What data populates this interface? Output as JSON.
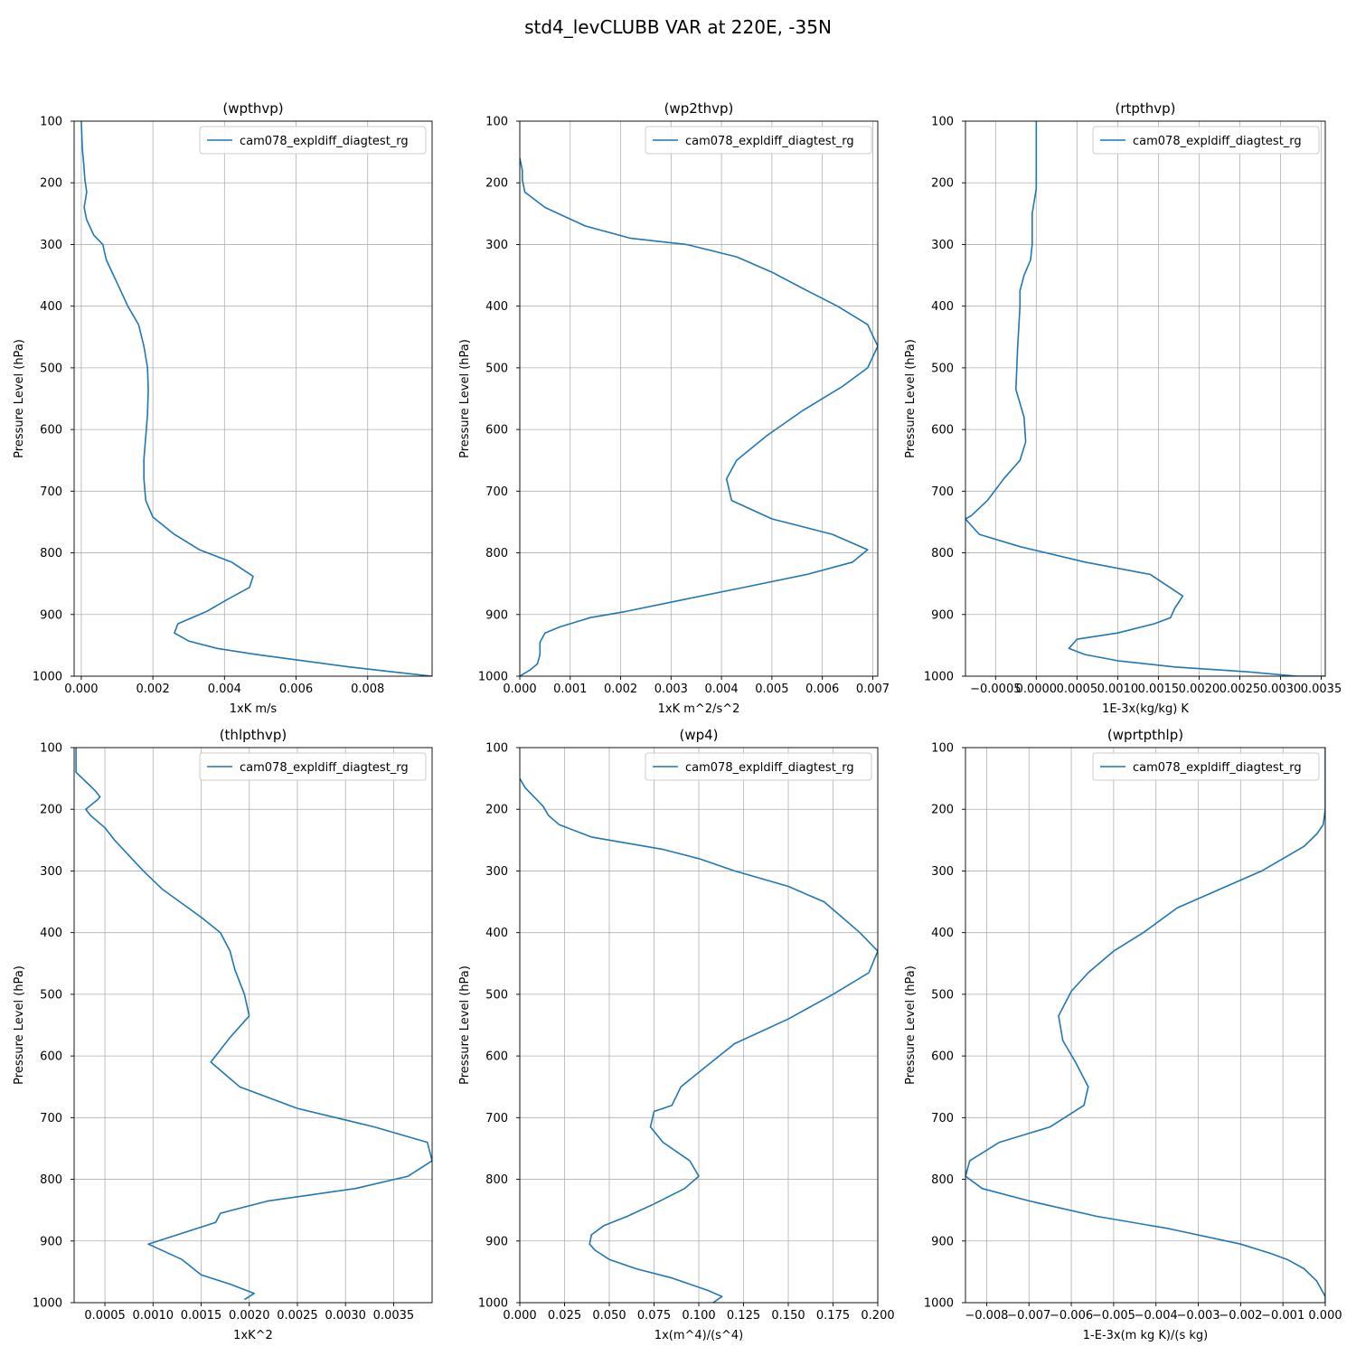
{
  "figure": {
    "title": "std4_levCLUBB VAR at 220E, -35N",
    "colors": {
      "line": "#1f77b4",
      "grid": "#b0b0b0",
      "axes": "#000000",
      "legend_border": "#cccccc"
    }
  },
  "chart_data": [
    {
      "type": "line",
      "title": "(wpthvp)",
      "xlabel": "1xK m/s",
      "ylabel": "Pressure Level (hPa)",
      "xlim": [
        -0.0002,
        0.0098
      ],
      "ylim": [
        1000,
        100
      ],
      "y_inverted": true,
      "xticks": [
        0.0,
        0.002,
        0.004,
        0.006,
        0.008
      ],
      "xtick_labels": [
        "0.000",
        "0.002",
        "0.004",
        "0.006",
        "0.008"
      ],
      "yticks": [
        100,
        200,
        300,
        400,
        500,
        600,
        700,
        800,
        900,
        1000
      ],
      "grid": true,
      "legend": "upper right",
      "series": [
        {
          "name": "cam078_expldiff_diagtest_rg",
          "x": [
            0.0,
            3e-05,
            7e-05,
            0.0001,
            0.00015,
            8e-05,
            0.00015,
            0.00035,
            0.0006,
            0.0007,
            0.0009,
            0.0011,
            0.0013,
            0.0016,
            0.00175,
            0.00185,
            0.00187,
            0.00185,
            0.0018,
            0.00175,
            0.00175,
            0.0018,
            0.002,
            0.0026,
            0.0033,
            0.0042,
            0.0048,
            0.0047,
            0.0041,
            0.0035,
            0.0027,
            0.0026,
            0.003,
            0.0038,
            0.0049,
            0.0062,
            0.0075,
            0.0087,
            0.0098
          ],
          "y": [
            100,
            145,
            170,
            195,
            215,
            240,
            260,
            285,
            300,
            325,
            350,
            375,
            400,
            430,
            465,
            500,
            535,
            575,
            612,
            648,
            680,
            715,
            742,
            770,
            795,
            815,
            838,
            856,
            875,
            895,
            915,
            930,
            943,
            955,
            965,
            975,
            985,
            993,
            1000
          ]
        }
      ]
    },
    {
      "type": "line",
      "title": "(wp2thvp)",
      "xlabel": "1xK m^2/s^2",
      "ylabel": "Pressure Level (hPa)",
      "xlim": [
        0.0,
        0.0071
      ],
      "ylim": [
        1000,
        100
      ],
      "y_inverted": true,
      "xticks": [
        0.0,
        0.001,
        0.002,
        0.003,
        0.004,
        0.005,
        0.006,
        0.007
      ],
      "xtick_labels": [
        "0.000",
        "0.001",
        "0.002",
        "0.003",
        "0.004",
        "0.005",
        "0.006",
        "0.007"
      ],
      "yticks": [
        100,
        200,
        300,
        400,
        500,
        600,
        700,
        800,
        900,
        1000
      ],
      "grid": true,
      "legend": "upper right",
      "series": [
        {
          "name": "cam078_expldiff_diagtest_rg",
          "x": [
            0.0,
            5e-05,
            5e-05,
            0.0001,
            0.0005,
            0.0013,
            0.0022,
            0.0033,
            0.0043,
            0.005,
            0.0057,
            0.0063,
            0.0069,
            0.0071,
            0.0069,
            0.0064,
            0.0056,
            0.0049,
            0.0043,
            0.0041,
            0.0042,
            0.005,
            0.0062,
            0.0069,
            0.0066,
            0.0057,
            0.0045,
            0.0033,
            0.0021,
            0.0014,
            0.0008,
            0.0005,
            0.0004,
            0.0004,
            0.00035,
            0.0002,
            0.0
          ],
          "y": [
            160,
            180,
            195,
            215,
            240,
            270,
            290,
            300,
            320,
            345,
            375,
            400,
            430,
            465,
            500,
            530,
            570,
            610,
            650,
            680,
            715,
            745,
            770,
            795,
            815,
            835,
            855,
            875,
            895,
            905,
            920,
            930,
            945,
            965,
            980,
            990,
            1000
          ]
        }
      ]
    },
    {
      "type": "line",
      "title": "(rtpthvp)",
      "xlabel": "1E-3x(kg/kg) K",
      "ylabel": "Pressure Level (hPa)",
      "xlim": [
        -0.00087,
        0.00355
      ],
      "ylim": [
        1000,
        100
      ],
      "y_inverted": true,
      "xticks": [
        -0.0005,
        0.0,
        0.0005,
        0.001,
        0.0015,
        0.002,
        0.0025,
        0.003,
        0.0035
      ],
      "xtick_labels": [
        "−0.0005",
        "0.0000",
        "0.0005",
        "0.0010",
        "0.0015",
        "0.0020",
        "0.0025",
        "0.0030",
        "0.0035"
      ],
      "yticks": [
        100,
        200,
        300,
        400,
        500,
        600,
        700,
        800,
        900,
        1000
      ],
      "grid": true,
      "legend": "upper right",
      "series": [
        {
          "name": "cam078_expldiff_diagtest_rg",
          "x": [
            0.0,
            0.0,
            0.0,
            0.0,
            -5e-05,
            -5e-05,
            -7e-05,
            -0.00015,
            -0.0002,
            -0.0002,
            -0.00023,
            -0.00025,
            -0.00015,
            -0.00013,
            -0.0002,
            -0.0004,
            -0.0006,
            -0.0008,
            -0.00087,
            -0.0007,
            -0.0002,
            0.0006,
            0.0014,
            0.0018,
            0.0017,
            0.00165,
            0.00145,
            0.001,
            0.0005,
            0.0004,
            0.0006,
            0.001,
            0.0017,
            0.0026,
            0.0032,
            0.00355
          ],
          "y": [
            100,
            150,
            180,
            210,
            250,
            300,
            325,
            350,
            375,
            400,
            470,
            535,
            580,
            620,
            650,
            680,
            715,
            740,
            745,
            770,
            790,
            815,
            835,
            870,
            890,
            905,
            915,
            930,
            940,
            955,
            965,
            975,
            985,
            993,
            1000,
            1000
          ]
        }
      ]
    },
    {
      "type": "line",
      "title": "(thlpthvp)",
      "xlabel": "1xK^2",
      "ylabel": "Pressure Level (hPa)",
      "xlim": [
        0.00018,
        0.0039
      ],
      "ylim": [
        1000,
        100
      ],
      "y_inverted": true,
      "xticks": [
        0.0005,
        0.001,
        0.0015,
        0.002,
        0.0025,
        0.003,
        0.0035
      ],
      "xtick_labels": [
        "0.0005",
        "0.0010",
        "0.0015",
        "0.0020",
        "0.0025",
        "0.0030",
        "0.0035"
      ],
      "yticks": [
        100,
        200,
        300,
        400,
        500,
        600,
        700,
        800,
        900,
        1000
      ],
      "grid": true,
      "legend": "upper right",
      "series": [
        {
          "name": "cam078_expldiff_diagtest_rg",
          "x": [
            0.0002,
            0.0002,
            0.0003,
            0.0004,
            0.00045,
            0.00042,
            0.0003,
            0.00035,
            0.0005,
            0.0006,
            0.0009,
            0.0011,
            0.0015,
            0.0017,
            0.0018,
            0.00185,
            0.00195,
            0.002,
            0.0018,
            0.0016,
            0.0019,
            0.0025,
            0.0033,
            0.00385,
            0.0039,
            0.00365,
            0.0031,
            0.0022,
            0.0017,
            0.00165,
            0.00095,
            0.0013,
            0.0015,
            0.0018,
            0.00205,
            0.00195
          ],
          "y": [
            100,
            140,
            155,
            170,
            180,
            185,
            200,
            210,
            230,
            250,
            300,
            330,
            375,
            400,
            430,
            460,
            500,
            535,
            570,
            610,
            650,
            685,
            715,
            740,
            770,
            795,
            815,
            835,
            855,
            870,
            905,
            930,
            955,
            970,
            985,
            995
          ]
        }
      ]
    },
    {
      "type": "line",
      "title": "(wp4)",
      "xlabel": "1x(m^4)/(s^4)",
      "ylabel": "Pressure Level (hPa)",
      "xlim": [
        0.0,
        0.2
      ],
      "ylim": [
        1000,
        100
      ],
      "y_inverted": true,
      "xticks": [
        0.0,
        0.025,
        0.05,
        0.075,
        0.1,
        0.125,
        0.15,
        0.175,
        0.2
      ],
      "xtick_labels": [
        "0.000",
        "0.025",
        "0.050",
        "0.075",
        "0.100",
        "0.125",
        "0.150",
        "0.175",
        "0.200"
      ],
      "yticks": [
        100,
        200,
        300,
        400,
        500,
        600,
        700,
        800,
        900,
        1000
      ],
      "grid": true,
      "legend": "upper right",
      "series": [
        {
          "name": "cam078_expldiff_diagtest_rg",
          "x": [
            0.0,
            0.003,
            0.013,
            0.016,
            0.022,
            0.04,
            0.08,
            0.1,
            0.12,
            0.15,
            0.17,
            0.18,
            0.19,
            0.2,
            0.195,
            0.175,
            0.15,
            0.12,
            0.105,
            0.09,
            0.085,
            0.075,
            0.073,
            0.08,
            0.095,
            0.1,
            0.092,
            0.075,
            0.06,
            0.047,
            0.04,
            0.039,
            0.042,
            0.05,
            0.065,
            0.085,
            0.105,
            0.113,
            0.108
          ],
          "y": [
            150,
            165,
            195,
            210,
            225,
            245,
            265,
            280,
            300,
            325,
            350,
            375,
            400,
            430,
            465,
            500,
            540,
            580,
            615,
            650,
            680,
            690,
            715,
            740,
            770,
            795,
            815,
            840,
            860,
            875,
            890,
            905,
            915,
            930,
            945,
            960,
            980,
            990,
            1000
          ]
        }
      ]
    },
    {
      "type": "line",
      "title": "(wprtpthlp)",
      "xlabel": "1-E-3x(m kg K)/(s kg)",
      "ylabel": "Pressure Level (hPa)",
      "xlim": [
        -0.0085,
        0.0
      ],
      "ylim": [
        1000,
        100
      ],
      "y_inverted": true,
      "xticks": [
        -0.008,
        -0.007,
        -0.006,
        -0.005,
        -0.004,
        -0.003,
        -0.002,
        -0.001,
        0.0
      ],
      "xtick_labels": [
        "−0.008",
        "−0.007",
        "−0.006",
        "−0.005",
        "−0.004",
        "−0.003",
        "−0.002",
        "−0.001",
        "0.000"
      ],
      "yticks": [
        100,
        200,
        300,
        400,
        500,
        600,
        700,
        800,
        900,
        1000
      ],
      "grid": true,
      "legend": "upper right",
      "series": [
        {
          "name": "cam078_expldiff_diagtest_rg",
          "x": [
            0.0,
            0.0,
            -5e-05,
            -0.0002,
            -0.0005,
            -0.001,
            -0.0015,
            -0.0025,
            -0.0035,
            -0.0043,
            -0.005,
            -0.0056,
            -0.006,
            -0.0063,
            -0.0062,
            -0.0059,
            -0.0056,
            -0.0057,
            -0.0065,
            -0.0077,
            -0.0084,
            -0.0085,
            -0.0081,
            -0.007,
            -0.0054,
            -0.0037,
            -0.002,
            -0.0013,
            -0.0009,
            -0.0005,
            -0.0002,
            0.0,
            0.0
          ],
          "y": [
            100,
            200,
            225,
            240,
            260,
            280,
            300,
            330,
            360,
            400,
            430,
            465,
            495,
            535,
            575,
            610,
            650,
            680,
            715,
            740,
            770,
            795,
            815,
            835,
            860,
            880,
            905,
            920,
            930,
            945,
            965,
            990,
            1000
          ]
        }
      ]
    }
  ]
}
